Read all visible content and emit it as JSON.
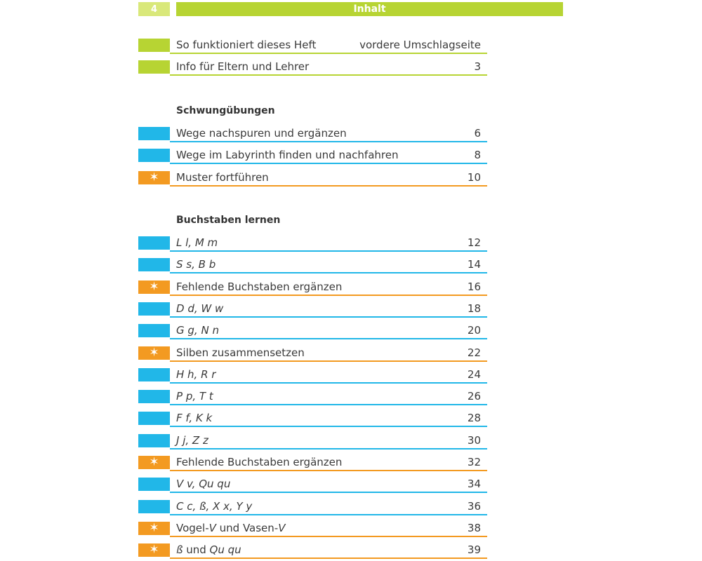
{
  "header": {
    "page_number": "4",
    "title": "Inhalt"
  },
  "colors": {
    "green": "#b7d433",
    "green_light": "#d9e87a",
    "blue": "#21b7e8",
    "orange": "#f39a21"
  },
  "intro": [
    {
      "label": "So funktioniert dieses Heft",
      "page": "vordere Umschlagseite",
      "kind": "green"
    },
    {
      "label": "Info für Eltern und Lehrer",
      "page": "3",
      "kind": "green"
    }
  ],
  "sections": [
    {
      "title": "Schwungübungen",
      "items": [
        {
          "label": "Wege nachspuren und ergänzen",
          "page": "6",
          "kind": "blue"
        },
        {
          "label": "Wege im Labyrinth finden und nachfahren",
          "page": "8",
          "kind": "blue"
        },
        {
          "label": "Muster fortführen",
          "page": "10",
          "kind": "star"
        }
      ]
    },
    {
      "title": "Buchstaben lernen",
      "items": [
        {
          "label": "L l, M m",
          "page": "12",
          "kind": "blue",
          "italic": true
        },
        {
          "label": "S s, B b",
          "page": "14",
          "kind": "blue",
          "italic": true
        },
        {
          "label": "Fehlende Buchstaben ergänzen",
          "page": "16",
          "kind": "star"
        },
        {
          "label": "D d, W w",
          "page": "18",
          "kind": "blue",
          "italic": true
        },
        {
          "label": "G g, N n",
          "page": "20",
          "kind": "blue",
          "italic": true
        },
        {
          "label": "Silben zusammensetzen",
          "page": "22",
          "kind": "star"
        },
        {
          "label": "H h, R r",
          "page": "24",
          "kind": "blue",
          "italic": true
        },
        {
          "label": "P p, T t",
          "page": "26",
          "kind": "blue",
          "italic": true
        },
        {
          "label": "F f, K k",
          "page": "28",
          "kind": "blue",
          "italic": true
        },
        {
          "label": "J j, Z z",
          "page": "30",
          "kind": "blue",
          "italic": true
        },
        {
          "label": "Fehlende Buchstaben ergänzen",
          "page": "32",
          "kind": "star"
        },
        {
          "label": "V v, Qu qu",
          "page": "34",
          "kind": "blue",
          "italic": true
        },
        {
          "label": "C c, ß, X x, Y y",
          "page": "36",
          "kind": "blue",
          "italic": true
        },
        {
          "label": "Vogel-V und Vasen-V",
          "page": "38",
          "kind": "star",
          "parts": [
            [
              "Vogel-",
              false
            ],
            [
              "V",
              true
            ],
            [
              " und Vasen-",
              false
            ],
            [
              "V",
              true
            ]
          ]
        },
        {
          "label": "ß und Qu qu",
          "page": "39",
          "kind": "star",
          "parts": [
            [
              "ß",
              true
            ],
            [
              " und ",
              false
            ],
            [
              "Qu qu",
              true
            ]
          ]
        }
      ]
    }
  ]
}
